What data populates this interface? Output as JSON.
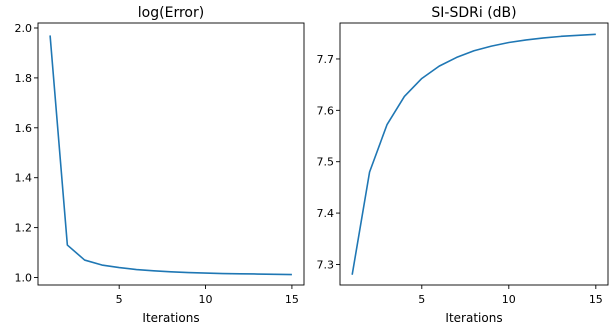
{
  "chart_data": [
    {
      "type": "line",
      "title": "log(Error)",
      "xlabel": "Iterations",
      "ylabel": "",
      "x": [
        1,
        2,
        3,
        4,
        5,
        6,
        7,
        8,
        9,
        10,
        11,
        12,
        13,
        14,
        15
      ],
      "series": [
        {
          "values": [
            1.97,
            1.13,
            1.07,
            1.05,
            1.04,
            1.032,
            1.027,
            1.023,
            1.02,
            1.018,
            1.016,
            1.015,
            1.014,
            1.013,
            1.012
          ],
          "color": "#1f77b4"
        }
      ],
      "xlim": [
        0.3,
        15.7
      ],
      "ylim": [
        0.97,
        2.02
      ],
      "xticks": [
        5,
        10,
        15
      ],
      "yticks": [
        1.0,
        1.2,
        1.4,
        1.6,
        1.8,
        2.0
      ],
      "ytick_labels": [
        "1.0",
        "1.2",
        "1.4",
        "1.6",
        "1.8",
        "2.0"
      ],
      "grid": false,
      "legend": "none"
    },
    {
      "type": "line",
      "title": "SI-SDRi (dB)",
      "xlabel": "Iterations",
      "ylabel": "",
      "x": [
        1,
        2,
        3,
        4,
        5,
        6,
        7,
        8,
        9,
        10,
        11,
        12,
        13,
        14,
        15
      ],
      "series": [
        {
          "values": [
            7.28,
            7.48,
            7.572,
            7.627,
            7.662,
            7.686,
            7.703,
            7.716,
            7.725,
            7.732,
            7.737,
            7.741,
            7.744,
            7.746,
            7.748
          ],
          "color": "#1f77b4"
        }
      ],
      "xlim": [
        0.3,
        15.7
      ],
      "ylim": [
        7.26,
        7.77
      ],
      "xticks": [
        5,
        10,
        15
      ],
      "yticks": [
        7.3,
        7.4,
        7.5,
        7.6,
        7.7
      ],
      "ytick_labels": [
        "7.3",
        "7.4",
        "7.5",
        "7.6",
        "7.7"
      ],
      "grid": false,
      "legend": "none"
    }
  ]
}
